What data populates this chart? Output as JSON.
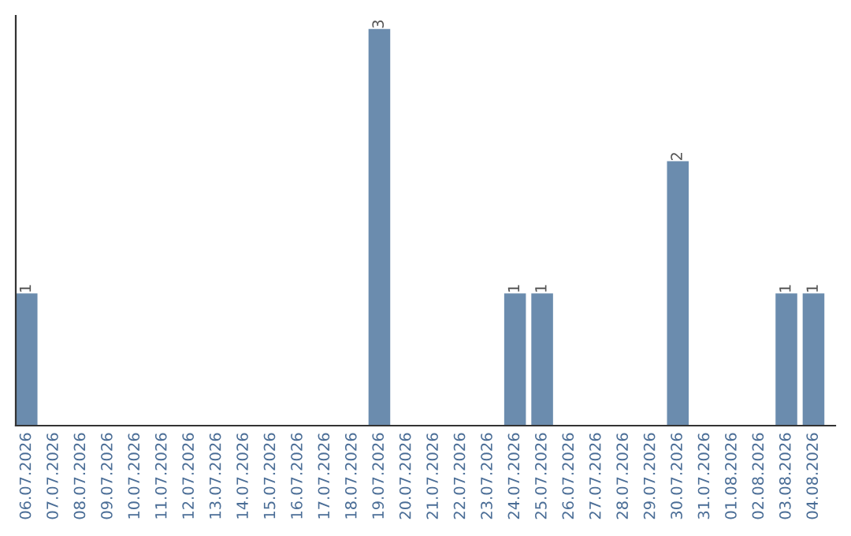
{
  "chart_data": {
    "type": "bar",
    "categories": [
      "06.07.2026",
      "07.07.2026",
      "08.07.2026",
      "09.07.2026",
      "10.07.2026",
      "11.07.2026",
      "12.07.2026",
      "13.07.2026",
      "14.07.2026",
      "15.07.2026",
      "16.07.2026",
      "17.07.2026",
      "18.07.2026",
      "19.07.2026",
      "20.07.2026",
      "21.07.2026",
      "22.07.2026",
      "23.07.2026",
      "24.07.2026",
      "25.07.2026",
      "26.07.2026",
      "27.07.2026",
      "28.07.2026",
      "29.07.2026",
      "30.07.2026",
      "31.07.2026",
      "01.08.2026",
      "02.08.2026",
      "03.08.2026",
      "04.08.2026"
    ],
    "values": [
      1,
      0,
      0,
      0,
      0,
      0,
      0,
      0,
      0,
      0,
      0,
      0,
      0,
      3,
      0,
      0,
      0,
      0,
      1,
      1,
      0,
      0,
      0,
      0,
      2,
      0,
      0,
      0,
      1,
      1
    ],
    "value_labels": [
      "1",
      null,
      null,
      null,
      null,
      null,
      null,
      null,
      null,
      null,
      null,
      null,
      null,
      "3",
      null,
      null,
      null,
      null,
      "1",
      "1",
      null,
      null,
      null,
      null,
      "2",
      null,
      null,
      null,
      "1",
      "1"
    ],
    "color": "#6b8cae",
    "ylim": [
      0,
      3.1
    ],
    "tick_labels": "x",
    "grid": false
  }
}
